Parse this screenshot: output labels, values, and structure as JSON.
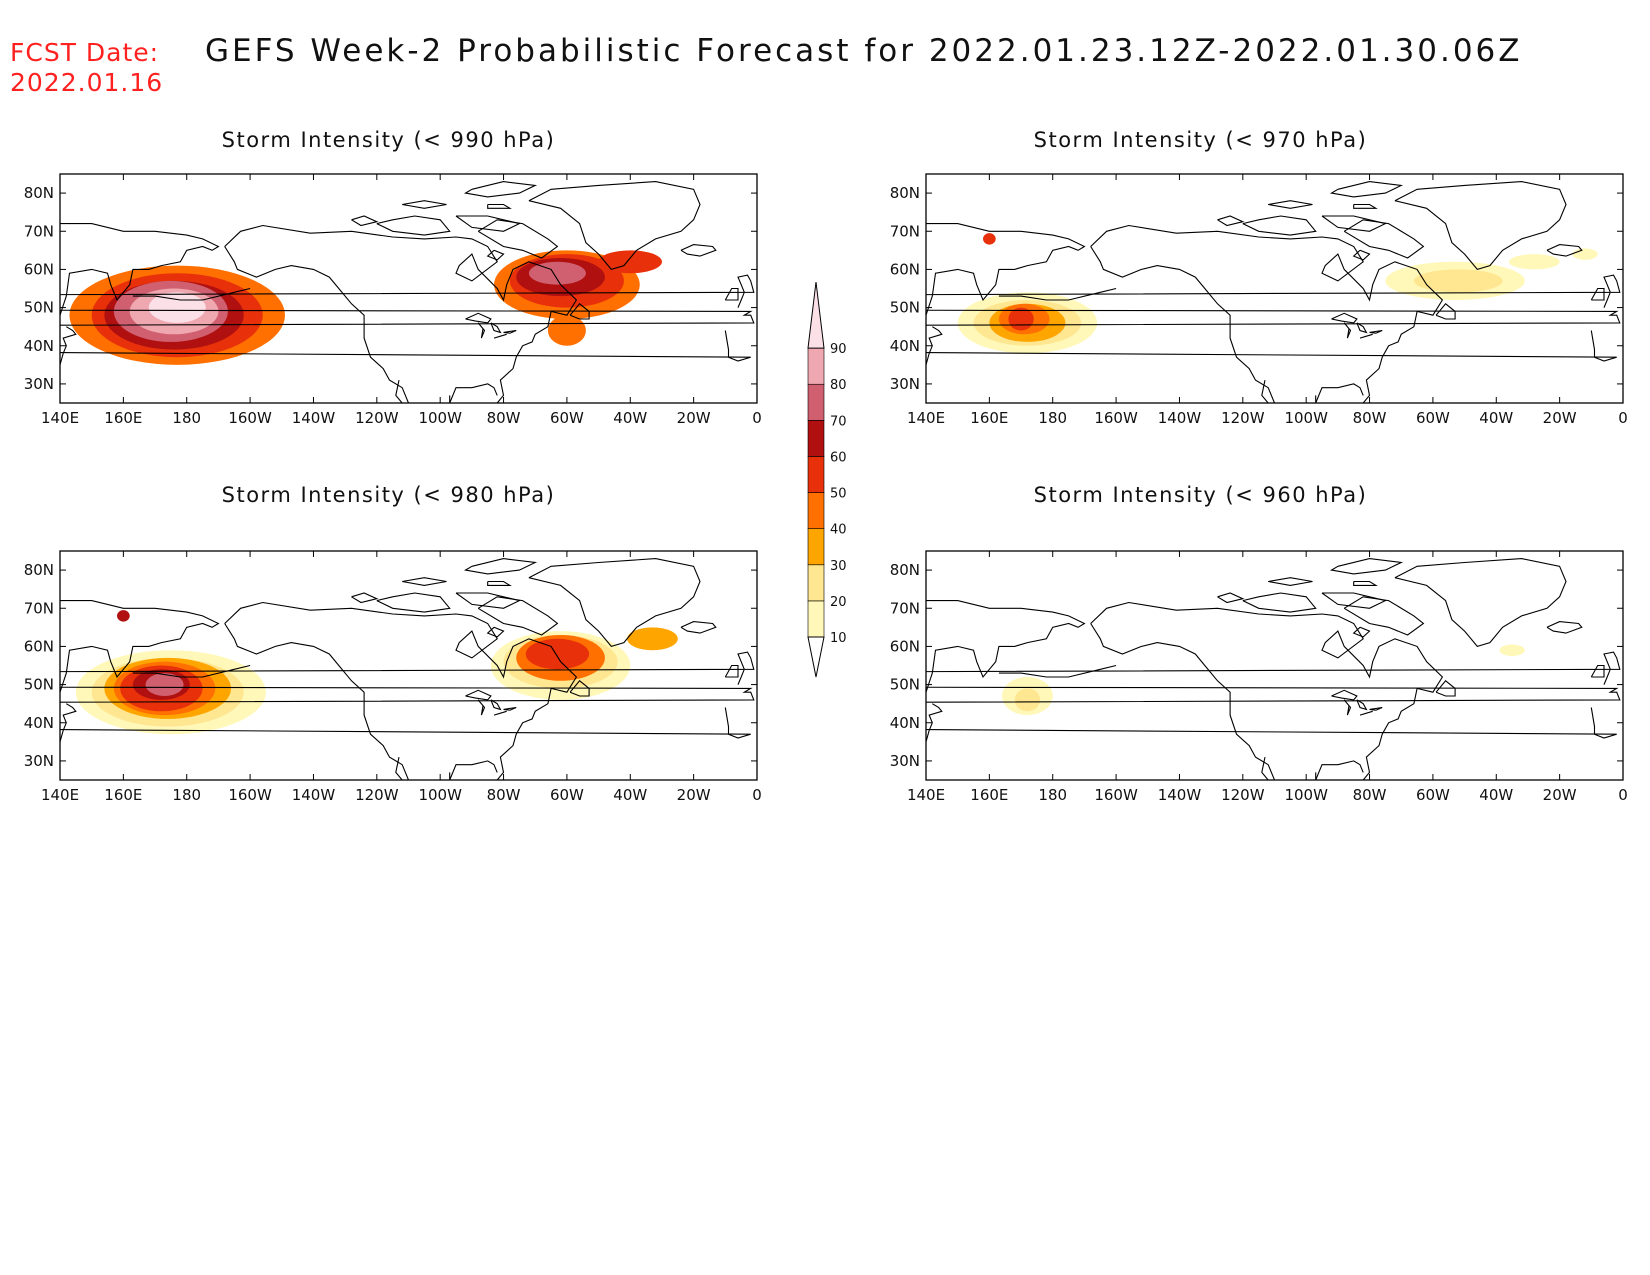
{
  "header": {
    "fcst_line1": "FCST Date:",
    "fcst_line2": "2022.01.16",
    "title": "GEFS Week-2 Probabilistic Forecast for 2022.01.23.12Z-2022.01.30.06Z"
  },
  "axes": {
    "lon_ticks": [
      "140E",
      "160E",
      "180",
      "160W",
      "140W",
      "120W",
      "100W",
      "80W",
      "60W",
      "40W",
      "20W",
      "0"
    ],
    "lat_ticks": [
      "80N",
      "70N",
      "60N",
      "50N",
      "40N",
      "30N"
    ]
  },
  "colorbar": {
    "levels": [
      "10",
      "20",
      "30",
      "40",
      "50",
      "60",
      "70",
      "80",
      "90"
    ],
    "colors": [
      "#fff8b8",
      "#ffe690",
      "#ffa500",
      "#ff7000",
      "#e8300a",
      "#b01010",
      "#d06070",
      "#f0a8b0",
      "#fbe0e8"
    ]
  },
  "panels": [
    {
      "id": "p990",
      "title": "Storm Intensity (< 990 hPa)",
      "blobs": [
        {
          "lon": 177,
          "lat": 48,
          "rx": 34,
          "ry": 13,
          "level": 3
        },
        {
          "lon": 177,
          "lat": 48,
          "rx": 27,
          "ry": 11,
          "level": 4
        },
        {
          "lon": 176,
          "lat": 48,
          "rx": 22,
          "ry": 9,
          "level": 5
        },
        {
          "lon": 175,
          "lat": 49,
          "rx": 18,
          "ry": 8,
          "level": 6
        },
        {
          "lon": 176,
          "lat": 49,
          "rx": 14,
          "ry": 6,
          "level": 7
        },
        {
          "lon": 177,
          "lat": 50,
          "rx": 9,
          "ry": 4,
          "level": 8
        },
        {
          "lon": -60,
          "lat": 56,
          "rx": 23,
          "ry": 9,
          "level": 3
        },
        {
          "lon": -60,
          "lat": 57,
          "rx": 18,
          "ry": 7,
          "level": 4
        },
        {
          "lon": -62,
          "lat": 58,
          "rx": 14,
          "ry": 5,
          "level": 5
        },
        {
          "lon": -63,
          "lat": 59,
          "rx": 9,
          "ry": 3,
          "level": 6
        },
        {
          "lon": -40,
          "lat": 62,
          "rx": 10,
          "ry": 3,
          "level": 4
        },
        {
          "lon": -60,
          "lat": 44,
          "rx": 6,
          "ry": 4,
          "level": 3
        }
      ]
    },
    {
      "id": "p970",
      "title": "Storm Intensity (< 970 hPa)",
      "blobs": [
        {
          "lon": 172,
          "lat": 46,
          "rx": 22,
          "ry": 8,
          "level": 0
        },
        {
          "lon": 172,
          "lat": 46,
          "rx": 17,
          "ry": 6,
          "level": 1
        },
        {
          "lon": 172,
          "lat": 46,
          "rx": 12,
          "ry": 5,
          "level": 2
        },
        {
          "lon": 171,
          "lat": 47,
          "rx": 8,
          "ry": 4,
          "level": 3
        },
        {
          "lon": 170,
          "lat": 47,
          "rx": 4,
          "ry": 3,
          "level": 4
        },
        {
          "lon": -53,
          "lat": 57,
          "rx": 22,
          "ry": 5,
          "level": 0
        },
        {
          "lon": -52,
          "lat": 57,
          "rx": 14,
          "ry": 3,
          "level": 1
        },
        {
          "lon": -28,
          "lat": 62,
          "rx": 8,
          "ry": 2,
          "level": 0
        },
        {
          "lon": -12,
          "lat": 64,
          "rx": 4,
          "ry": 1.5,
          "level": 0
        },
        {
          "lon": 160,
          "lat": 68,
          "rx": 2,
          "ry": 1.5,
          "level": 4
        }
      ]
    },
    {
      "id": "p980",
      "title": "Storm Intensity (< 980 hPa)",
      "blobs": [
        {
          "lon": 175,
          "lat": 48,
          "rx": 30,
          "ry": 11,
          "level": 0
        },
        {
          "lon": 174,
          "lat": 48,
          "rx": 24,
          "ry": 9,
          "level": 1
        },
        {
          "lon": 174,
          "lat": 49,
          "rx": 20,
          "ry": 8,
          "level": 2
        },
        {
          "lon": 173,
          "lat": 49,
          "rx": 16,
          "ry": 7,
          "level": 3
        },
        {
          "lon": 172,
          "lat": 49,
          "rx": 13,
          "ry": 6,
          "level": 4
        },
        {
          "lon": 172,
          "lat": 50,
          "rx": 9,
          "ry": 4,
          "level": 5
        },
        {
          "lon": 173,
          "lat": 50,
          "rx": 6,
          "ry": 3,
          "level": 6
        },
        {
          "lon": -62,
          "lat": 55,
          "rx": 22,
          "ry": 9,
          "level": 0
        },
        {
          "lon": -62,
          "lat": 56,
          "rx": 18,
          "ry": 7,
          "level": 1
        },
        {
          "lon": -62,
          "lat": 57,
          "rx": 14,
          "ry": 6,
          "level": 3
        },
        {
          "lon": -63,
          "lat": 58,
          "rx": 10,
          "ry": 4,
          "level": 4
        },
        {
          "lon": -33,
          "lat": 62,
          "rx": 8,
          "ry": 3,
          "level": 2
        },
        {
          "lon": 160,
          "lat": 68,
          "rx": 2,
          "ry": 1.5,
          "level": 5
        }
      ]
    },
    {
      "id": "p960",
      "title": "Storm Intensity (< 960 hPa)",
      "blobs": [
        {
          "lon": 172,
          "lat": 47,
          "rx": 8,
          "ry": 5,
          "level": 0
        },
        {
          "lon": 172,
          "lat": 46,
          "rx": 4,
          "ry": 3,
          "level": 1
        },
        {
          "lon": -35,
          "lat": 59,
          "rx": 4,
          "ry": 1.5,
          "level": 0
        }
      ]
    }
  ]
}
